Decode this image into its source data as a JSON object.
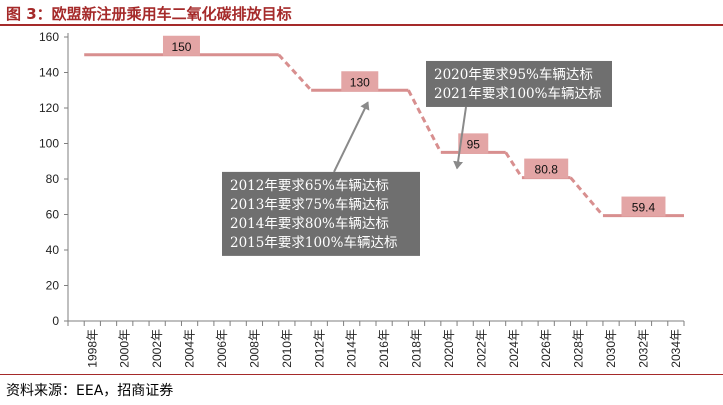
{
  "title": "图 3：欧盟新注册乘用车二氧化碳排放目标",
  "source": "资料来源：EEA，招商证券",
  "colors": {
    "line": "#d88f8f",
    "label_box": "#e3a5a5",
    "callout_bg": "#6f6f6f",
    "arrow": "#8a8a8a",
    "axis": "#7f7f7f",
    "title": "#a52a2a"
  },
  "chart_data": {
    "type": "line",
    "title": "",
    "xlabel": "",
    "ylabel": "",
    "ylim": [
      0,
      160
    ],
    "yticks": [
      "0",
      "20",
      "40",
      "60",
      "80",
      "100",
      "120",
      "140",
      "160"
    ],
    "xticks": [
      "1998年",
      "2000年",
      "2002年",
      "2004年",
      "2006年",
      "2008年",
      "2010年",
      "2012年",
      "2014年",
      "2016年",
      "2018年",
      "2020年",
      "2022年",
      "2024年",
      "2026年",
      "2028年",
      "2030年",
      "2032年",
      "2034年"
    ],
    "segments": [
      {
        "from": 1998,
        "to": 2010,
        "value": 150,
        "label": "150"
      },
      {
        "from": 2012,
        "to": 2018,
        "value": 130,
        "label": "130"
      },
      {
        "from": 2020,
        "to": 2024,
        "value": 95,
        "label": "95"
      },
      {
        "from": 2025,
        "to": 2028,
        "value": 80.8,
        "label": "80.8"
      },
      {
        "from": 2030,
        "to": 2035,
        "value": 59.4,
        "label": "59.4"
      }
    ],
    "annotations": [
      {
        "lines": [
          "2012年要求65%车辆达标",
          "2013年要求75%车辆达标",
          "2014年要求80%车辆达标",
          "2015年要求100%车辆达标"
        ],
        "points_to": {
          "x": 2015.5,
          "y": 130
        }
      },
      {
        "lines": [
          "2020年要求95%车辆达标",
          "2021年要求100%车辆达标"
        ],
        "points_to": {
          "x": 2021,
          "y": 95
        }
      }
    ]
  }
}
